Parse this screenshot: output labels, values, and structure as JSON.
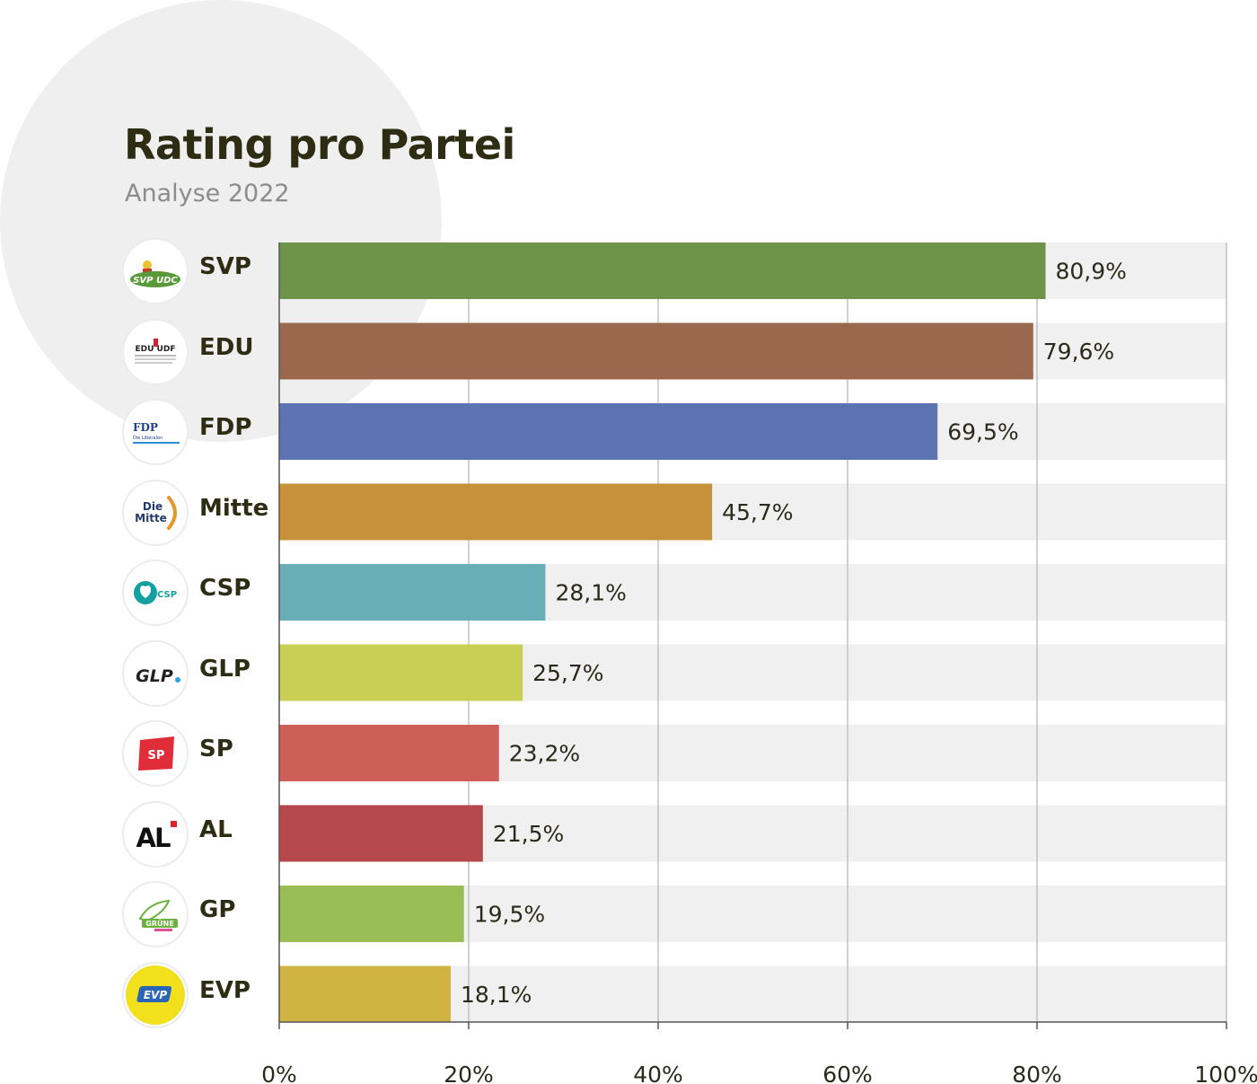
{
  "chart_data": {
    "type": "bar",
    "orientation": "horizontal",
    "title": "Rating pro Partei",
    "subtitle": "Analyse 2022",
    "categories": [
      "SVP",
      "EDU",
      "FDP",
      "Mitte",
      "CSP",
      "GLP",
      "SP",
      "AL",
      "GP",
      "EVP"
    ],
    "values": [
      80.9,
      79.6,
      69.5,
      45.7,
      28.1,
      25.7,
      23.2,
      21.5,
      19.5,
      18.1
    ],
    "value_labels": [
      "80,9%",
      "79,6%",
      "69,5%",
      "45,7%",
      "28,1%",
      "25,7%",
      "23,2%",
      "21,5%",
      "19,5%",
      "18,1%"
    ],
    "colors": [
      "#6e9449",
      "#9a694d",
      "#5c74b2",
      "#c8923d",
      "#6aaeb8",
      "#c9cf55",
      "#cd5e58",
      "#b4484a",
      "#9bbd55",
      "#d0b443"
    ],
    "xlim": [
      0,
      100
    ],
    "x_ticks": [
      "0%",
      "20%",
      "40%",
      "60%",
      "80%",
      "100%"
    ],
    "grid": true,
    "track_color": "#f0f0f0",
    "logos": [
      {
        "icon": "svp-udc-logo-icon",
        "text": "SVP UDC"
      },
      {
        "icon": "edu-udf-logo-icon",
        "text": "EDU UDF"
      },
      {
        "icon": "fdp-logo-icon",
        "text": "FDP",
        "subtext": "Die Liberalen"
      },
      {
        "icon": "die-mitte-logo-icon",
        "text": "Die Mitte"
      },
      {
        "icon": "csp-logo-icon",
        "text": "CSP"
      },
      {
        "icon": "glp-logo-icon",
        "text": "GLP"
      },
      {
        "icon": "sp-logo-icon",
        "text": "SP"
      },
      {
        "icon": "al-logo-icon",
        "text": "AL"
      },
      {
        "icon": "gruene-logo-icon",
        "text": "GRÜNE"
      },
      {
        "icon": "evp-logo-icon",
        "text": "EVP"
      }
    ]
  }
}
